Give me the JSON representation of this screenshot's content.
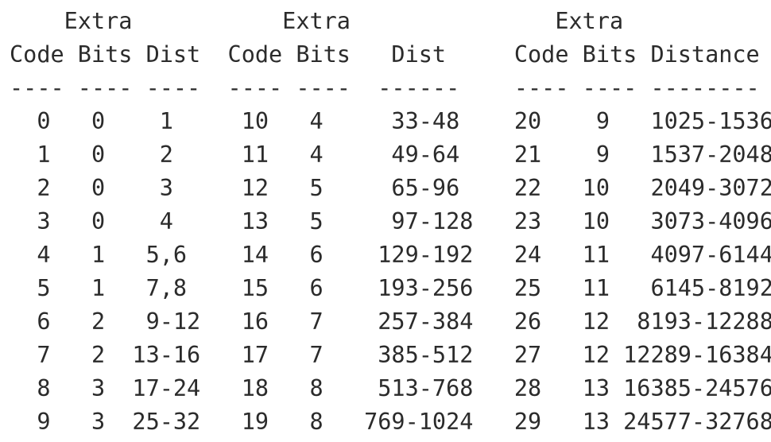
{
  "table": {
    "header_lines": [
      "    Extra           Extra               Extra",
      "Code Bits Dist  Code Bits   Dist     Code Bits Distance",
      "---- ---- ----  ---- ----  ------    ---- ---- --------"
    ],
    "rows": [
      "  0   0    1     10   4     33-48    20    9   1025-1536",
      "  1   0    2     11   4     49-64    21    9   1537-2048",
      "  2   0    3     12   5     65-96    22   10   2049-3072",
      "  3   0    4     13   5     97-128   23   10   3073-4096",
      "  4   1   5,6    14   6    129-192   24   11   4097-6144",
      "  5   1   7,8    15   6    193-256   25   11   6145-8192",
      "  6   2   9-12   16   7    257-384   26   12  8193-12288",
      "  7   2  13-16   17   7    385-512   27   12 12289-16384",
      "  8   3  17-24   18   8    513-768   28   13 16385-24576",
      "  9   3  25-32   19   8   769-1024   29   13 24577-32768"
    ]
  }
}
